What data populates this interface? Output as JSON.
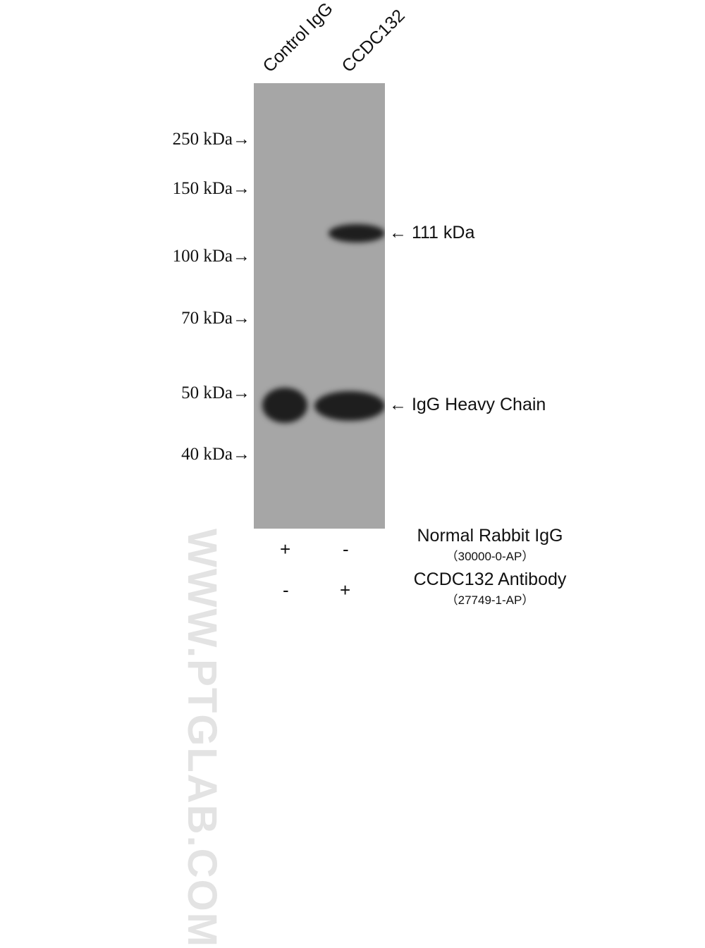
{
  "lanes": [
    "Control IgG",
    "CCDC132"
  ],
  "watermark": "WWW.PTGLAB.COM",
  "markers": [
    "250 kDa→",
    "150 kDa→",
    "100 kDa→",
    "70 kDa→",
    "50 kDa→",
    "40 kDa→"
  ],
  "annotations": [
    "← 111 kDa",
    "← IgG Heavy Chain"
  ],
  "reagents": [
    {
      "name": "Normal Rabbit IgG",
      "catalog": "（30000-0-AP）",
      "signs": [
        "+",
        "-"
      ]
    },
    {
      "name": "CCDC132 Antibody",
      "catalog": "（27749-1-AP）",
      "signs": [
        "-",
        "+"
      ]
    }
  ],
  "colors": {
    "membrane": "#a6a6a6",
    "band": "#1e1e1e"
  }
}
